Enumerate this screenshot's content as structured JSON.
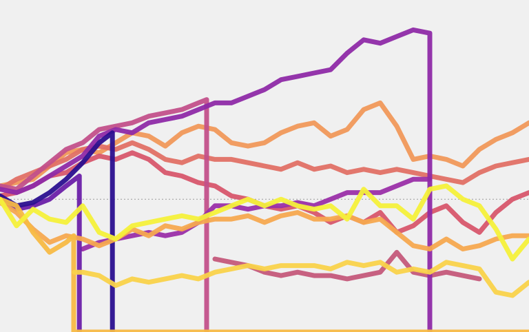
{
  "chart_data": {
    "type": "line",
    "xlim": [
      0,
      32
    ],
    "ylim": [
      0,
      100
    ],
    "hline": 40,
    "x": [
      0,
      1,
      2,
      3,
      4,
      5,
      6,
      7,
      8,
      9,
      10,
      11,
      12,
      13,
      14,
      15,
      16,
      17,
      18,
      19,
      20,
      21,
      22,
      23,
      24,
      25,
      26,
      27,
      28,
      29,
      30,
      31,
      32
    ],
    "series": [
      {
        "color": "#f0985a",
        "values": [
          44,
          45,
          46,
          50,
          54,
          55,
          54,
          57,
          60,
          59,
          56,
          60,
          62,
          61,
          57,
          56,
          57,
          60,
          62,
          63,
          59,
          61,
          67,
          69,
          62,
          52,
          53,
          52,
          50,
          55,
          58,
          60,
          63
        ]
      },
      {
        "color": "#e07065",
        "values": [
          43,
          46,
          48,
          50,
          52,
          55,
          56,
          55,
          57,
          55,
          52,
          51,
          53,
          52,
          52,
          51,
          50,
          49,
          51,
          49,
          50,
          48,
          49,
          48,
          49,
          48,
          47,
          46,
          45,
          48,
          50,
          51,
          52
        ]
      },
      {
        "color": "#d7566b",
        "values": [
          41,
          42,
          44,
          47,
          48,
          51,
          53,
          52,
          54,
          52,
          48,
          47,
          45,
          44,
          41,
          40,
          38,
          37,
          38,
          36,
          33,
          35,
          33,
          36,
          30,
          32,
          36,
          38,
          33,
          30,
          36,
          40,
          42
        ]
      },
      {
        "color": "#c4587a",
        "x": [
          13,
          14,
          15,
          16,
          17,
          18,
          19,
          20,
          21,
          22,
          23,
          24,
          25,
          26,
          27,
          28,
          29
        ],
        "values": [
          22,
          21,
          20,
          18,
          17,
          18,
          17,
          17,
          16,
          17,
          18,
          24,
          18,
          17,
          18,
          17,
          16
        ]
      },
      {
        "color": "#c2508a",
        "x": [
          0,
          1,
          2,
          3,
          4,
          5,
          6,
          7,
          8,
          9,
          10,
          11,
          12,
          12.5,
          12.5
        ],
        "values": [
          44,
          43,
          47,
          51,
          55,
          57,
          61,
          62,
          63,
          65,
          66,
          67,
          69,
          70,
          0
        ]
      },
      {
        "color": "#9a2fa8",
        "x": [
          5,
          6,
          7,
          8,
          9,
          10,
          11,
          12,
          13,
          14,
          15,
          16,
          17,
          18,
          19,
          20,
          21,
          22,
          23,
          24,
          25,
          26
        ],
        "values": [
          25,
          27,
          28,
          29,
          30,
          29,
          30,
          33,
          38,
          38,
          37,
          38,
          38,
          39,
          38,
          40,
          42,
          42,
          42,
          44,
          46,
          46
        ]
      },
      {
        "color": "#8e2aa6",
        "x": [
          0,
          1,
          2,
          3,
          4,
          5,
          6,
          7,
          8,
          9,
          10,
          11,
          12,
          13,
          14,
          15,
          16,
          17,
          18,
          19,
          20,
          21,
          22,
          23,
          24,
          25,
          26,
          26
        ],
        "values": [
          43,
          42,
          44,
          47,
          50,
          53,
          59,
          61,
          60,
          63,
          64,
          65,
          67,
          69,
          69,
          71,
          73,
          76,
          77,
          78,
          79,
          84,
          88,
          87,
          89,
          91,
          90,
          0
        ]
      },
      {
        "color": "#6a1fa8",
        "x": [
          0,
          1,
          2,
          3,
          4,
          4.8,
          4.8
        ],
        "values": [
          40,
          37,
          38,
          40,
          44,
          47,
          0
        ]
      },
      {
        "color": "#2a0f8f",
        "x": [
          0,
          1,
          2,
          3,
          4,
          5,
          6,
          6.8,
          6.8
        ],
        "values": [
          41,
          38,
          39,
          42,
          46,
          51,
          57,
          60,
          0
        ]
      },
      {
        "color": "#f6a84f",
        "values": [
          39,
          36,
          31,
          27,
          29,
          28,
          26,
          28,
          31,
          29,
          32,
          31,
          33,
          34,
          34,
          35,
          33,
          35,
          36,
          34,
          34,
          35,
          33,
          34,
          30,
          26,
          25,
          28,
          25,
          26,
          28,
          29,
          29
        ]
      },
      {
        "color": "#f7b945",
        "x": [
          0,
          1,
          2,
          3,
          4,
          4.46,
          4.46,
          32
        ],
        "values": [
          40,
          38,
          30,
          24,
          27,
          29,
          0,
          0
        ]
      },
      {
        "color": "#f9d24a",
        "x": [
          4.5,
          5,
          6,
          7,
          8,
          9,
          10,
          11,
          12,
          13,
          14,
          15,
          16,
          17,
          18,
          19,
          20,
          21,
          22,
          23,
          24,
          25,
          26,
          27,
          28,
          29,
          30,
          31,
          32
        ],
        "values": [
          18,
          18,
          17,
          14,
          16,
          15,
          16,
          17,
          16,
          18,
          19,
          20,
          19,
          20,
          20,
          20,
          19,
          21,
          20,
          21,
          18,
          19,
          18,
          21,
          20,
          19,
          12,
          11,
          15
        ]
      },
      {
        "color": "#f4f03a",
        "values": [
          40,
          32,
          37,
          34,
          33,
          38,
          30,
          28,
          32,
          33,
          34,
          35,
          34,
          36,
          38,
          40,
          38,
          40,
          38,
          37,
          38,
          34,
          43,
          38,
          38,
          34,
          43,
          44,
          40,
          38,
          31,
          22,
          28
        ]
      }
    ]
  }
}
